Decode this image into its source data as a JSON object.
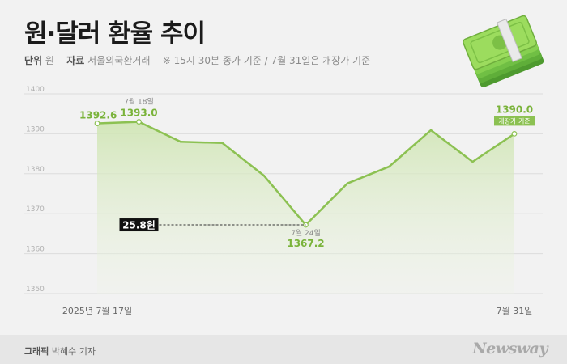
{
  "header": {
    "title": "원·달러 환율 추이",
    "unit_label": "단위",
    "unit_value": "원",
    "source_label": "자료",
    "source_value": "서울외국환거래",
    "note": "※ 15시 30분 종가 기준 / 7월 31일은 개장가 기준"
  },
  "footer": {
    "credit_label": "그래픽",
    "credit_name": "박혜수 기자",
    "brand": "Newsway"
  },
  "icons": {
    "money": "money-stack-icon"
  },
  "colors": {
    "line": "#8cc152",
    "value_label": "#7ab33a",
    "area_top": "#cfe5b3",
    "grid": "#dcdcdc",
    "diff_box": "#111111"
  },
  "chart_data": {
    "type": "area",
    "series": [
      {
        "points": [
          {
            "x": "2025-07-17",
            "y": 1392.6
          },
          {
            "x": "2025-07-18",
            "y": 1393.0
          },
          {
            "x": "2025-07-21",
            "y": 1388.0
          },
          {
            "x": "2025-07-22",
            "y": 1387.7
          },
          {
            "x": "2025-07-23",
            "y": 1379.5
          },
          {
            "x": "2025-07-24",
            "y": 1367.2
          },
          {
            "x": "2025-07-25",
            "y": 1377.6
          },
          {
            "x": "2025-07-28",
            "y": 1381.8
          },
          {
            "x": "2025-07-29",
            "y": 1390.9
          },
          {
            "x": "2025-07-30",
            "y": 1383.0
          },
          {
            "x": "2025-07-31",
            "y": 1390.0
          }
        ]
      }
    ],
    "yticks": [
      1400,
      1390,
      1380,
      1370,
      1360,
      1350
    ],
    "ylim": [
      1350,
      1400
    ],
    "xtick_labels": [
      {
        "index": 0,
        "text": "2025년 7월 17일"
      },
      {
        "index": 10,
        "text": "7월 31일"
      }
    ],
    "annotations": [
      {
        "index": 0,
        "value_text": "1392.6"
      },
      {
        "index": 1,
        "date_text": "7월 18일",
        "value_text": "1393.0"
      },
      {
        "index": 5,
        "date_text": "7월 24일",
        "value_text": "1367.2"
      },
      {
        "index": 10,
        "value_text": "1390.0",
        "tag_text": "개장가 기준"
      }
    ],
    "difference": {
      "from_index": 1,
      "to_index": 5,
      "text": "25.8원"
    },
    "grid": true,
    "legend": false
  }
}
